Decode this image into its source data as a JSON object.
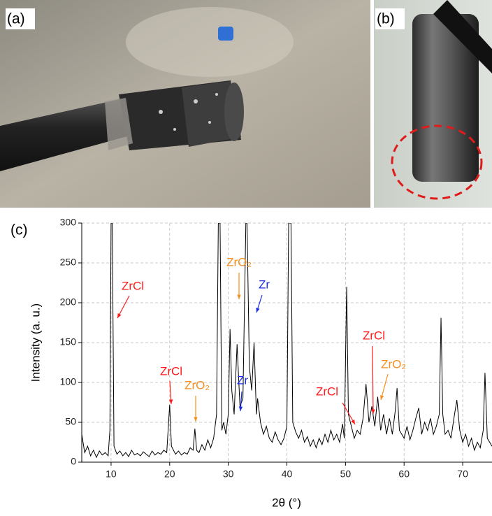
{
  "panels": [
    "(a)",
    "(b)",
    "(c)"
  ],
  "chart_data": {
    "type": "line",
    "ylabel": "Intensity (a. u.)",
    "xlabel": "2θ (°)",
    "xlim": [
      5,
      75
    ],
    "xticks": [
      10,
      20,
      30,
      40,
      50,
      60,
      70
    ],
    "ylim": [
      0,
      300
    ],
    "yticks": [
      0,
      50,
      100,
      150,
      200,
      250,
      300
    ],
    "grid": true,
    "color": "#000000",
    "x": [
      5,
      5.5,
      6,
      6.5,
      7,
      7.5,
      8,
      8.5,
      9,
      9.5,
      9.8,
      10,
      10.2,
      10.5,
      11,
      11.5,
      12,
      12.5,
      13,
      13.5,
      14,
      14.5,
      15,
      15.5,
      16,
      16.5,
      17,
      17.5,
      18,
      18.5,
      19,
      19.5,
      20,
      20.3,
      21,
      21.5,
      22,
      22.5,
      23,
      23.5,
      24,
      24.3,
      24.6,
      25,
      25.5,
      26,
      26.5,
      27,
      27.5,
      28,
      28.3,
      28.6,
      28.9,
      29.2,
      29.6,
      30,
      30.3,
      30.6,
      31,
      31.5,
      31.8,
      32,
      32.5,
      33,
      33.2,
      33.6,
      34,
      34.4,
      34.8,
      35,
      35.5,
      36,
      36.5,
      37,
      37.5,
      38,
      38.5,
      39,
      39.5,
      40,
      40.3,
      40.7,
      41,
      41.5,
      42,
      42.5,
      43,
      43.5,
      44,
      44.5,
      45,
      45.5,
      46,
      46.5,
      47,
      47.5,
      48,
      48.5,
      49,
      49.5,
      49.8,
      50.2,
      50.5,
      51,
      51.5,
      52,
      52.5,
      53,
      53.5,
      54,
      54.5,
      55,
      55.5,
      56,
      56.5,
      57,
      57.5,
      58,
      58.5,
      58.8,
      59.2,
      60,
      60.5,
      61,
      61.5,
      62,
      62.5,
      63,
      63.5,
      64,
      64.5,
      65,
      65.5,
      66,
      66.3,
      66.6,
      67,
      67.5,
      68,
      68.5,
      69,
      69.5,
      70,
      70.5,
      71,
      71.5,
      72,
      72.5,
      73,
      73.5,
      73.8,
      74.2,
      75
    ],
    "values": [
      35,
      12,
      20,
      8,
      15,
      6,
      14,
      9,
      12,
      8,
      40,
      300,
      300,
      20,
      10,
      14,
      8,
      12,
      7,
      15,
      9,
      11,
      8,
      13,
      10,
      7,
      14,
      9,
      12,
      10,
      15,
      12,
      72,
      20,
      10,
      14,
      9,
      12,
      10,
      18,
      15,
      42,
      15,
      12,
      22,
      15,
      28,
      18,
      30,
      60,
      300,
      300,
      40,
      50,
      35,
      60,
      167,
      90,
      60,
      148,
      100,
      70,
      80,
      300,
      300,
      120,
      90,
      150,
      60,
      80,
      50,
      35,
      45,
      30,
      25,
      38,
      28,
      22,
      30,
      45,
      300,
      300,
      50,
      38,
      30,
      40,
      25,
      32,
      20,
      28,
      18,
      30,
      22,
      35,
      25,
      40,
      28,
      35,
      25,
      48,
      30,
      220,
      60,
      45,
      30,
      40,
      35,
      55,
      98,
      50,
      70,
      45,
      82,
      40,
      60,
      35,
      55,
      35,
      65,
      93,
      40,
      30,
      45,
      28,
      40,
      55,
      68,
      35,
      50,
      40,
      55,
      35,
      45,
      60,
      181,
      60,
      35,
      40,
      30,
      55,
      78,
      40,
      25,
      35,
      20,
      30,
      15,
      25,
      18,
      40,
      112,
      30,
      20
    ],
    "annotations": [
      {
        "text": "ZrCl",
        "color": "#ff1a1a"
      },
      {
        "text": "ZrCl",
        "color": "#ff1a1a"
      },
      {
        "text": "ZrO₂",
        "color": "#f5901e"
      },
      {
        "text": "ZrO₂",
        "color": "#f5901e"
      },
      {
        "text": "Zr",
        "color": "#1a2ee6"
      },
      {
        "text": "Zr",
        "color": "#1a2ee6"
      },
      {
        "text": "ZrCl",
        "color": "#ff1a1a"
      },
      {
        "text": "ZrCl",
        "color": "#ff1a1a"
      },
      {
        "text": "ZrO₂",
        "color": "#f5901e"
      }
    ]
  }
}
